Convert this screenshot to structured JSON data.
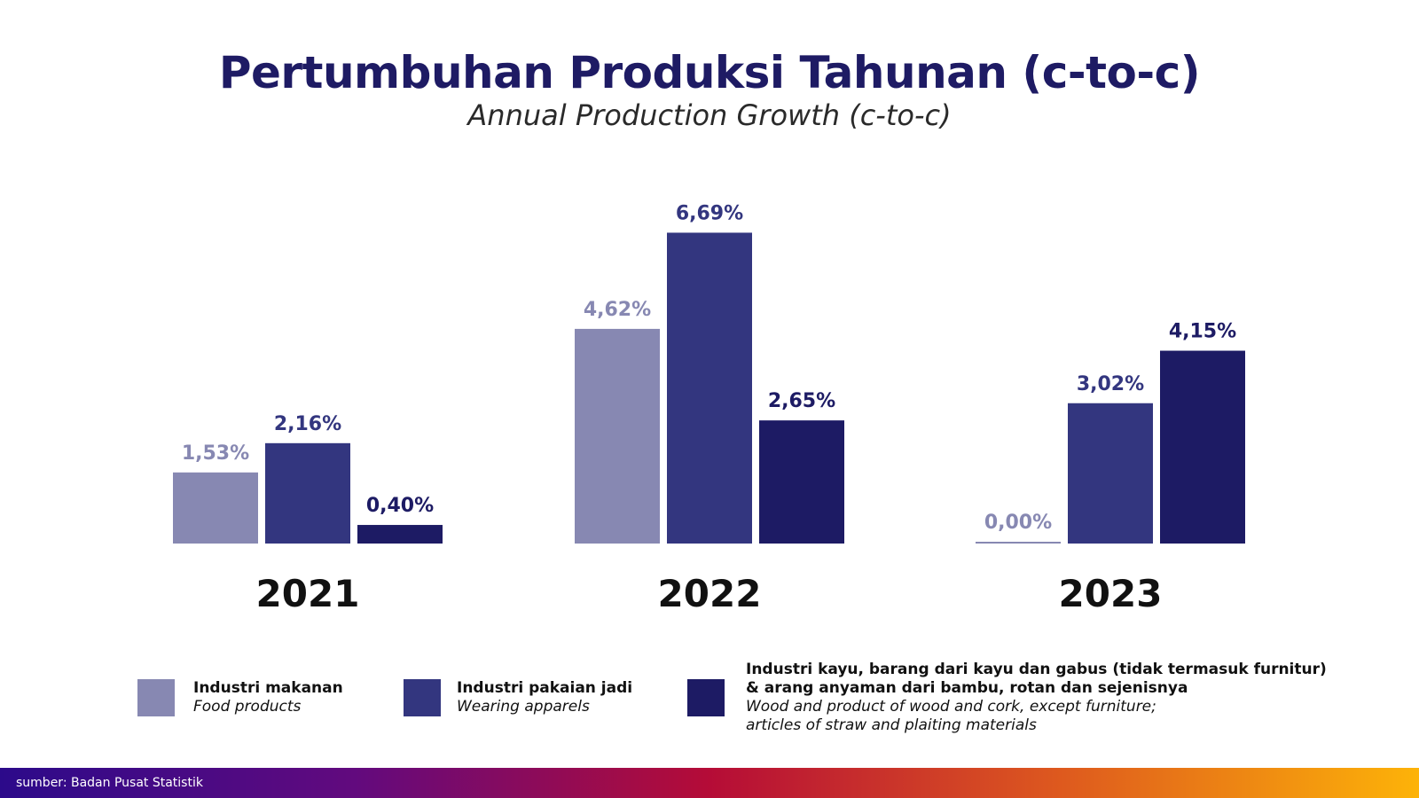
{
  "title": "Pertumbuhan Produksi Tahunan (c-to-c)",
  "subtitle": "Annual Production Growth (c-to-c)",
  "source": "sumber: Badan Pusat Statistik",
  "colors": {
    "food": "#8788b2",
    "apparel": "#33367f",
    "wood": "#1d1b64",
    "title": "#1e1b64"
  },
  "chart_data": {
    "type": "bar",
    "title": "Pertumbuhan Produksi Tahunan (c-to-c)",
    "subtitle": "Annual Production Growth (c-to-c)",
    "categories": [
      "2021",
      "2022",
      "2023"
    ],
    "series": [
      {
        "name": "Industri makanan",
        "values": [
          1.53,
          4.62,
          0.0
        ],
        "labels": [
          "1,53%",
          "4,62%",
          "0,00%"
        ]
      },
      {
        "name": "Industri pakaian jadi",
        "values": [
          2.16,
          6.69,
          3.02
        ],
        "labels": [
          "2,16%",
          "6,69%",
          "3,02%"
        ]
      },
      {
        "name": "Industri kayu, barang dari kayu dan gabus (tidak termasuk furnitur) & arang anyaman dari bambu, rotan dan sejenisnya",
        "values": [
          0.4,
          2.65,
          4.15
        ],
        "labels": [
          "0,40%",
          "2,65%",
          "4,15%"
        ]
      }
    ],
    "grid": false,
    "legend_position": "bottom"
  },
  "legend": [
    {
      "id_label": "Industri makanan",
      "en_lines": [
        "Food products"
      ]
    },
    {
      "id_label": "Industri pakaian jadi",
      "en_lines": [
        "Wearing apparels"
      ]
    },
    {
      "id_lines": [
        "Industri kayu, barang dari kayu dan gabus (tidak termasuk furnitur)",
        "& arang anyaman dari bambu, rotan dan sejenisnya"
      ],
      "en_lines": [
        "Wood and product of wood and cork, except furniture;",
        "articles of straw and plaiting materials"
      ]
    }
  ]
}
